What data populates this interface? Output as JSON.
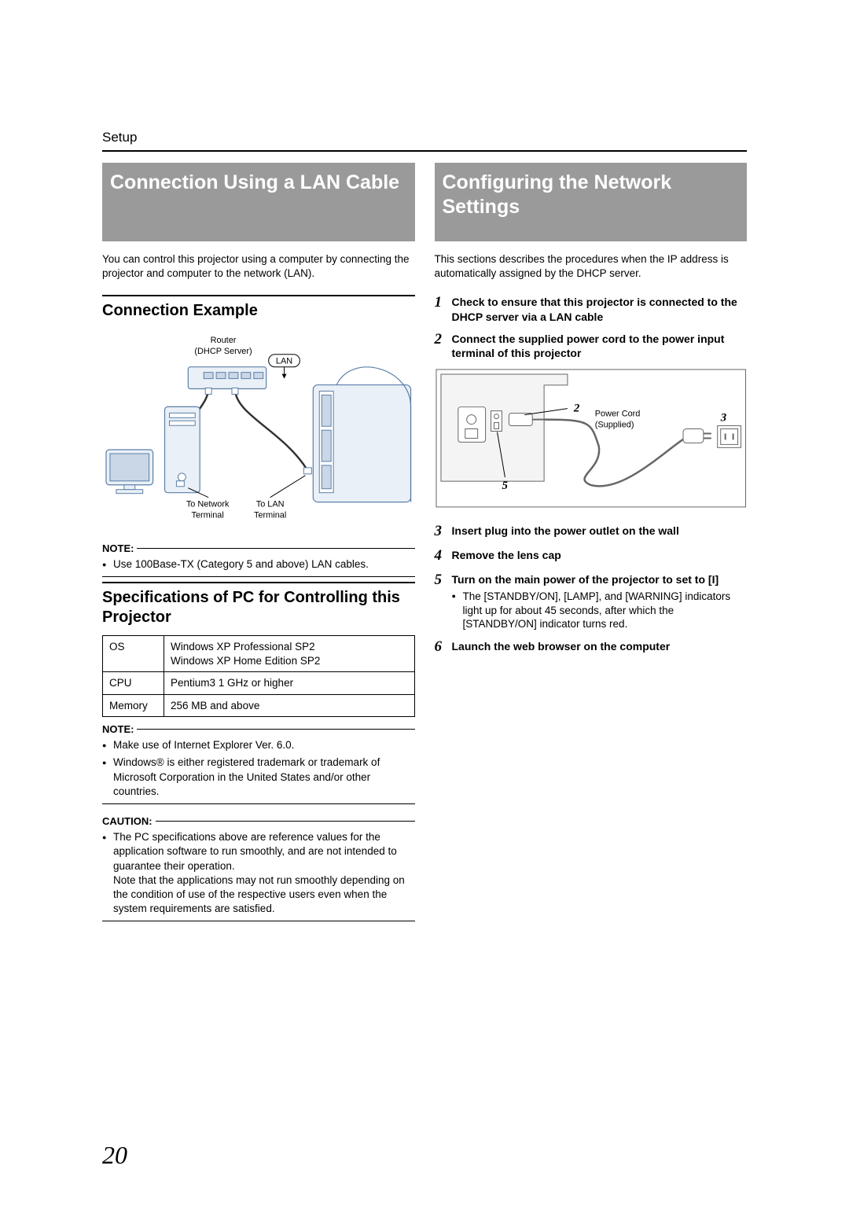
{
  "section_label": "Setup",
  "page_number": "20",
  "left": {
    "heading": "Connection Using a LAN Cable",
    "intro": "You can control this projector using a computer by connecting the projector and computer to the network (LAN).",
    "sub1": "Connection Example",
    "diagram": {
      "router_label1": "Router",
      "router_label2": "(DHCP Server)",
      "lan_badge": "LAN",
      "to_network1": "To Network",
      "to_network2": "Terminal",
      "to_lan1": "To LAN",
      "to_lan2": "Terminal",
      "outline_color": "#5a7fa8",
      "fill_light": "#eaf0f7",
      "fill_mid": "#c9d7e6",
      "cable_color": "#333333"
    },
    "note1_label": "NOTE:",
    "note1_items": [
      "Use 100Base-TX (Category 5 and above) LAN cables."
    ],
    "sub2": "Specifications of PC for Controlling this Projector",
    "spec_table": {
      "rows": [
        [
          "OS",
          "Windows XP Professional SP2\nWindows XP Home Edition SP2"
        ],
        [
          "CPU",
          "Pentium3 1 GHz or higher"
        ],
        [
          "Memory",
          "256 MB and above"
        ]
      ]
    },
    "note2_label": "NOTE:",
    "note2_items": [
      "Make use of Internet Explorer Ver. 6.0.",
      "Windows® is either registered trademark or trademark of Microsoft Corporation in the United States and/or other countries."
    ],
    "caution_label": "CAUTION:",
    "caution_items": [
      "The PC specifications above are reference values for the application software to run smoothly, and are not intended to guarantee their operation.\nNote that the applications may not run smoothly depending on the condition of use of the respective users even when the system requirements are satisfied."
    ]
  },
  "right": {
    "heading": "Configuring the Network Settings",
    "intro": "This sections describes the procedures when the IP address is automatically assigned by the DHCP server.",
    "steps_top": [
      {
        "n": "1",
        "text": "Check to ensure that this projector is connected to the DHCP server via a LAN cable"
      },
      {
        "n": "2",
        "text": "Connect the supplied power cord to the power input terminal of this projector"
      }
    ],
    "diagram": {
      "power_cord1": "Power Cord",
      "power_cord2": "(Supplied)",
      "label2": "2",
      "label3": "3",
      "label5": "5",
      "outline_color": "#666666",
      "fill_light": "#f4f4f4"
    },
    "steps_bottom": [
      {
        "n": "3",
        "text": "Insert plug into the power outlet on the wall"
      },
      {
        "n": "4",
        "text": "Remove the lens cap"
      },
      {
        "n": "5",
        "text": "Turn on the main power of the projector to set to [I]",
        "sub": [
          "The [STANDBY/ON], [LAMP], and [WARNING] indicators light up for about 45 seconds, after which the [STANDBY/ON] indicator turns red."
        ]
      },
      {
        "n": "6",
        "text": "Launch the web browser on the computer"
      }
    ]
  }
}
